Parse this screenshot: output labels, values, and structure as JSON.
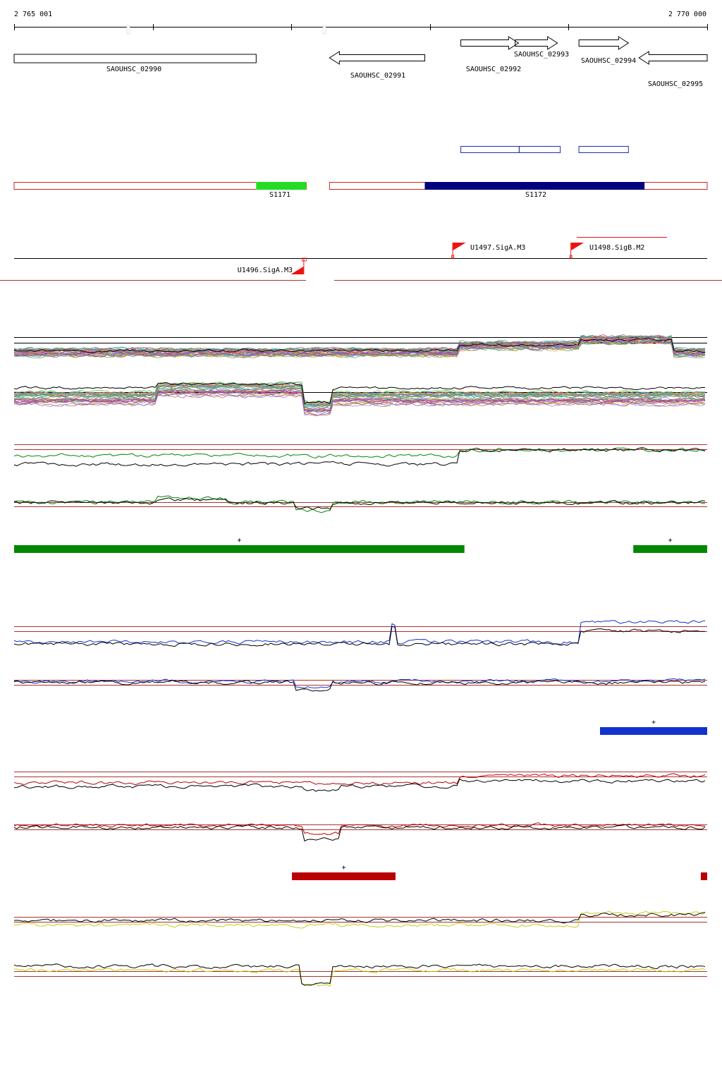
{
  "coordinates": {
    "start_label": "2 765 001",
    "end_label": "2 770 000",
    "start": 2765001,
    "end": 2770000
  },
  "colors": {
    "gene_outline": "#000000",
    "segment_outline": "#cc2222",
    "segment_green": "#22dd22",
    "segment_navy": "#000080",
    "blue_box": "#1a2fb0",
    "promoter_flag": "#ee1111",
    "track_green": "#008800",
    "track_blue": "#1133cc",
    "track_red": "#bb0000",
    "track_yellow": "#cccc11",
    "baseline": "#aa3333"
  },
  "genes": [
    {
      "name": "SAOUHSC_02990",
      "start": 2765001,
      "end": 2766747,
      "strand": "none"
    },
    {
      "name": "SAOUHSC_02991",
      "start": 2767276,
      "end": 2767963,
      "strand": "-"
    },
    {
      "name": "SAOUHSC_02992",
      "start": 2768223,
      "end": 2768639,
      "strand": "+"
    },
    {
      "name": "SAOUHSC_02993",
      "start": 2768615,
      "end": 2768920,
      "strand": "+"
    },
    {
      "name": "SAOUHSC_02994",
      "start": 2769075,
      "end": 2769432,
      "strand": "+"
    },
    {
      "name": "SAOUHSC_02995",
      "start": 2769508,
      "end": 2770000,
      "strand": "-"
    }
  ],
  "predicted_boxes": [
    {
      "start": 2768223,
      "end": 2768644
    },
    {
      "start": 2768644,
      "end": 2768940
    },
    {
      "start": 2769075,
      "end": 2769432
    }
  ],
  "segments": [
    {
      "label": "S1171",
      "start": 2765001,
      "end": 2767108,
      "highlight_start": 2766747,
      "highlight_end": 2767108,
      "highlight_color": "segment_green"
    },
    {
      "label": "S1172",
      "start": 2767276,
      "end": 2770000,
      "highlight_start": 2767963,
      "highlight_end": 2769548,
      "highlight_color": "segment_navy"
    }
  ],
  "promoters": [
    {
      "label": "U1496.SigA.M3",
      "position": 2767088,
      "strand": "-"
    },
    {
      "label": "U1497.SigA.M3",
      "position": 2768162,
      "strand": "+"
    },
    {
      "label": "U1498.SigB.M2",
      "position": 2769014,
      "strand": "+"
    }
  ],
  "condition_groups": [
    {
      "name": "green",
      "color": "track_green",
      "bars": [
        {
          "start": 2765001,
          "end": 2768249,
          "sign": "+"
        },
        {
          "start": 2769467,
          "end": 2770000,
          "sign": "+"
        }
      ]
    },
    {
      "name": "blue",
      "color": "track_blue",
      "bars": [
        {
          "start": 2769227,
          "end": 2770000,
          "sign": "+"
        }
      ]
    },
    {
      "name": "red",
      "color": "track_red",
      "bars": [
        {
          "start": 2767005,
          "end": 2767752,
          "sign": "+"
        },
        {
          "start": 2769954,
          "end": 2770000,
          "sign": ""
        }
      ]
    },
    {
      "name": "yellow",
      "color": "track_yellow",
      "bars": []
    }
  ]
}
